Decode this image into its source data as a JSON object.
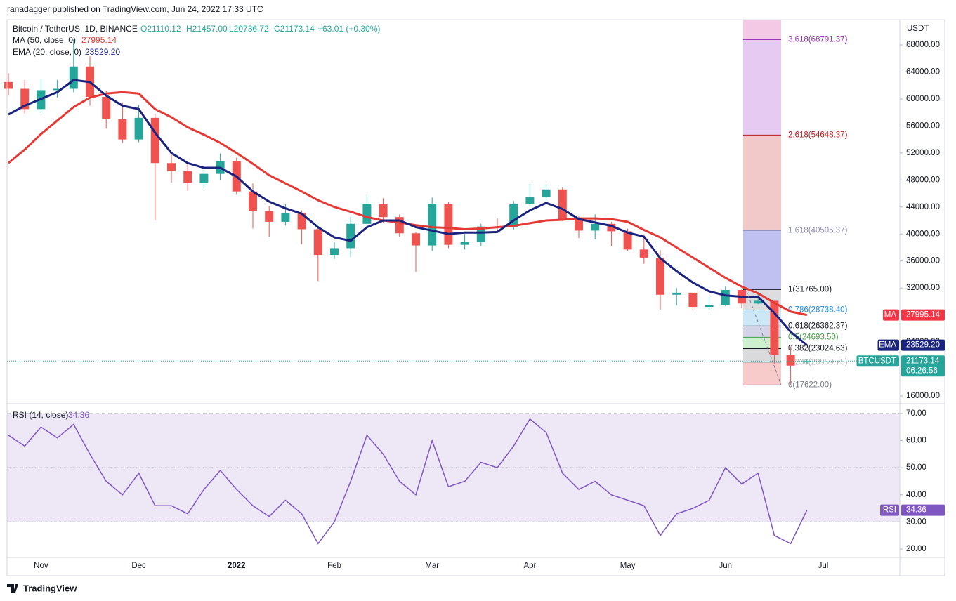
{
  "header": {
    "publisher": "ranadagger published on TradingView.com, Jun 24, 2022 17:33 UTC",
    "symbol": "Bitcoin / TetherUS, 1D, BINANCE",
    "ohlc": [
      "O21110.12",
      "H21457.00",
      "L20736.72",
      "C21173.14"
    ],
    "change": "+63.01 (+0.30%)",
    "ma_legend": "MA (50, close, 0)",
    "ema_legend": "EMA (20, close, 0)",
    "ema_value": "23529.20",
    "rsi_legend": "RSI (14, close)"
  },
  "footer": {
    "brand": "TradingView"
  },
  "chart_data": [
    {
      "type": "candlestick",
      "currency": "USDT",
      "up_color": "#26a69a",
      "down_color": "#ef5350",
      "categories": [
        null,
        null,
        "Nov",
        null,
        null,
        null,
        null,
        null,
        "Dec",
        null,
        null,
        null,
        null,
        null,
        "2022",
        null,
        null,
        null,
        null,
        null,
        "Feb",
        null,
        null,
        null,
        null,
        null,
        "Mar",
        null,
        null,
        null,
        null,
        null,
        "Apr",
        null,
        null,
        null,
        null,
        null,
        "May",
        null,
        null,
        null,
        null,
        null,
        "Jun",
        null,
        null,
        null,
        null,
        null,
        "Jul"
      ],
      "open": [
        62500,
        61500,
        58500,
        61300,
        61500,
        64800,
        60300,
        57000,
        54000,
        57200,
        50500,
        49300,
        47600,
        48900,
        50800,
        46300,
        43400,
        41800,
        43100,
        40700,
        36900,
        37900,
        41500,
        44400,
        42500,
        40100,
        38300,
        44400,
        38400,
        38800,
        41100,
        41000,
        44500,
        45500,
        46600,
        42200,
        40500,
        41500,
        40400,
        37700,
        36500,
        31000,
        31300,
        29200,
        29500,
        31700,
        29700,
        30100,
        22100,
        21110.12,
        null
      ],
      "high": [
        63800,
        62800,
        63000,
        62800,
        68800,
        66300,
        61200,
        59500,
        59100,
        57800,
        51900,
        50500,
        49500,
        51900,
        51300,
        47500,
        44100,
        44400,
        43500,
        41100,
        38800,
        42500,
        45800,
        45300,
        42900,
        40300,
        45400,
        44700,
        40000,
        41500,
        42300,
        44900,
        47400,
        47400,
        46900,
        42600,
        42900,
        41800,
        40800,
        39800,
        37600,
        32000,
        31400,
        30700,
        32200,
        31800,
        31400,
        30100,
        23300,
        21457,
        null
      ],
      "low": [
        60500,
        57800,
        57900,
        60200,
        61000,
        59000,
        55600,
        53500,
        53600,
        42000,
        47600,
        46400,
        46700,
        48000,
        45800,
        40800,
        39600,
        41300,
        38500,
        33000,
        36300,
        36600,
        41000,
        41600,
        39600,
        34400,
        37500,
        37900,
        37700,
        38200,
        40200,
        40600,
        44100,
        45000,
        41900,
        39400,
        39200,
        38200,
        37500,
        35600,
        28800,
        29400,
        28700,
        28700,
        29300,
        29000,
        29600,
        20800,
        17622,
        20736.72,
        null
      ],
      "close": [
        61500,
        58500,
        61300,
        61500,
        64800,
        60300,
        57000,
        54000,
        57200,
        50500,
        49300,
        47600,
        48900,
        50800,
        46300,
        43400,
        41800,
        43100,
        40700,
        36900,
        37900,
        41500,
        44400,
        42500,
        40100,
        38300,
        44400,
        38400,
        38800,
        41100,
        41000,
        44500,
        45500,
        46600,
        42200,
        40500,
        41500,
        40400,
        37700,
        36500,
        31000,
        31300,
        29200,
        29500,
        31700,
        29700,
        30100,
        22100,
        20500,
        21173.14,
        null
      ],
      "series": [
        {
          "name": "MA",
          "color": "#e53935",
          "values": [
            50500,
            52500,
            54800,
            56800,
            58800,
            60200,
            60800,
            61000,
            60800,
            58500,
            57300,
            55800,
            54700,
            53500,
            52000,
            50400,
            48700,
            47500,
            46300,
            45000,
            44000,
            43300,
            42500,
            42000,
            41700,
            41300,
            41000,
            40900,
            40700,
            40800,
            41000,
            41200,
            41600,
            42000,
            42100,
            42300,
            42300,
            42200,
            41800,
            40600,
            39500,
            38000,
            36500,
            35000,
            33500,
            32200,
            31200,
            29800,
            28500,
            27995.14,
            null
          ]
        },
        {
          "name": "EMA",
          "color": "#1a237e",
          "values": [
            57700,
            59000,
            60000,
            61000,
            62800,
            62500,
            60500,
            59000,
            58500,
            55000,
            52000,
            50500,
            49800,
            49800,
            48500,
            46300,
            44800,
            43800,
            43000,
            41000,
            39500,
            39000,
            41000,
            42000,
            42000,
            41000,
            40500,
            40000,
            40200,
            40200,
            40300,
            42000,
            43500,
            44600,
            43700,
            42200,
            41700,
            41200,
            40200,
            39600,
            36400,
            34500,
            32800,
            31500,
            30900,
            30700,
            30700,
            28300,
            25500,
            23529.2,
            null
          ]
        }
      ],
      "ylim": [
        15168,
        71744
      ],
      "yticks": [
        {
          "value": 16000,
          "label": "16000.00"
        },
        {
          "value": 20000,
          "label": "20000.00"
        },
        {
          "value": 24000,
          "label": "24000.00"
        },
        {
          "value": 28000,
          "label": "28000.00"
        },
        {
          "value": 32000,
          "label": "32000.00"
        },
        {
          "value": 36000,
          "label": "36000.00"
        },
        {
          "value": 40000,
          "label": "40000.00"
        },
        {
          "value": 44000,
          "label": "44000.00"
        },
        {
          "value": 48000,
          "label": "48000.00"
        },
        {
          "value": 52000,
          "label": "52000.00"
        },
        {
          "value": 56000,
          "label": "56000.00"
        },
        {
          "value": 60000,
          "label": "60000.00"
        },
        {
          "value": 64000,
          "label": "64000.00"
        },
        {
          "value": 68000,
          "label": "68000.00"
        }
      ],
      "fib": [
        {
          "value": 17622,
          "label": "0(17622.00)",
          "color": "#787b86",
          "fill": "#f7c5c5"
        },
        {
          "value": 20959.75,
          "label": "0.236(20959.75)",
          "color": "#b0b0b8",
          "fill": "#d6d6d9"
        },
        {
          "value": 23024.63,
          "label": "0.382(23024.63)",
          "color": "#131722",
          "fill": "#c9eec9"
        },
        {
          "value": 24693.5,
          "label": "0.5(24693.50)",
          "color": "#43a047",
          "fill": "#cfcfe6"
        },
        {
          "value": 26362.37,
          "label": "0.618(26362.37)",
          "color": "#131722",
          "fill": "#c7e4f5"
        },
        {
          "value": 28738.4,
          "label": "0.786(28738.40)",
          "color": "#1e88e5",
          "fill": "#d9d9dc"
        },
        {
          "value": 31765,
          "label": "1(31765.00)",
          "color": "#131722",
          "fill": "#b9b9f0"
        },
        {
          "value": 40505.37,
          "label": "1.618(40505.37)",
          "color": "#8d8db8",
          "fill": "#f0c3c3"
        },
        {
          "value": 54648.37,
          "label": "2.618(54648.37)",
          "color": "#b71c1c",
          "fill": "#e3c4f1"
        },
        {
          "value": 68791.37,
          "label": "3.618(68791.37)",
          "color": "#8e24aa",
          "fill": "#f3c3e3"
        }
      ],
      "tags": [
        {
          "name": "MA",
          "color": "#f23645",
          "value": 27995.14,
          "label": "27995.14"
        },
        {
          "name": "EMA",
          "color": "#1a237e",
          "value": 23529.2,
          "label": "23529.20"
        },
        {
          "name": "BTCUSDT",
          "color": "#26a69a",
          "value": 21173.14,
          "label": "21173.14",
          "countdown": "06:26:56"
        }
      ]
    },
    {
      "type": "line",
      "series": [
        {
          "name": "RSI",
          "color": "#7e57c2",
          "values": [
            62,
            58,
            65,
            61,
            66,
            55,
            45,
            40,
            48,
            36,
            36,
            33,
            42,
            49,
            42,
            36,
            32,
            38,
            33,
            22,
            30,
            45,
            62,
            55,
            45,
            40,
            60,
            43,
            45,
            52,
            50,
            58,
            68,
            63,
            48,
            42,
            45,
            40,
            38,
            36,
            25,
            33,
            35,
            38,
            50,
            44,
            48,
            25,
            22,
            34.36,
            null
          ]
        }
      ],
      "ylim": [
        17.15,
        72.85
      ],
      "yticks": [
        {
          "value": 20,
          "label": "20.00"
        },
        {
          "value": 30,
          "label": "30.00"
        },
        {
          "value": 40,
          "label": "40.00"
        },
        {
          "value": 50,
          "label": "50.00"
        },
        {
          "value": 60,
          "label": "60.00"
        },
        {
          "value": 70,
          "label": "70.00"
        }
      ],
      "band": [
        30,
        70
      ],
      "levels": [
        30,
        50,
        70
      ],
      "band_color": "#ede7f6"
    }
  ]
}
